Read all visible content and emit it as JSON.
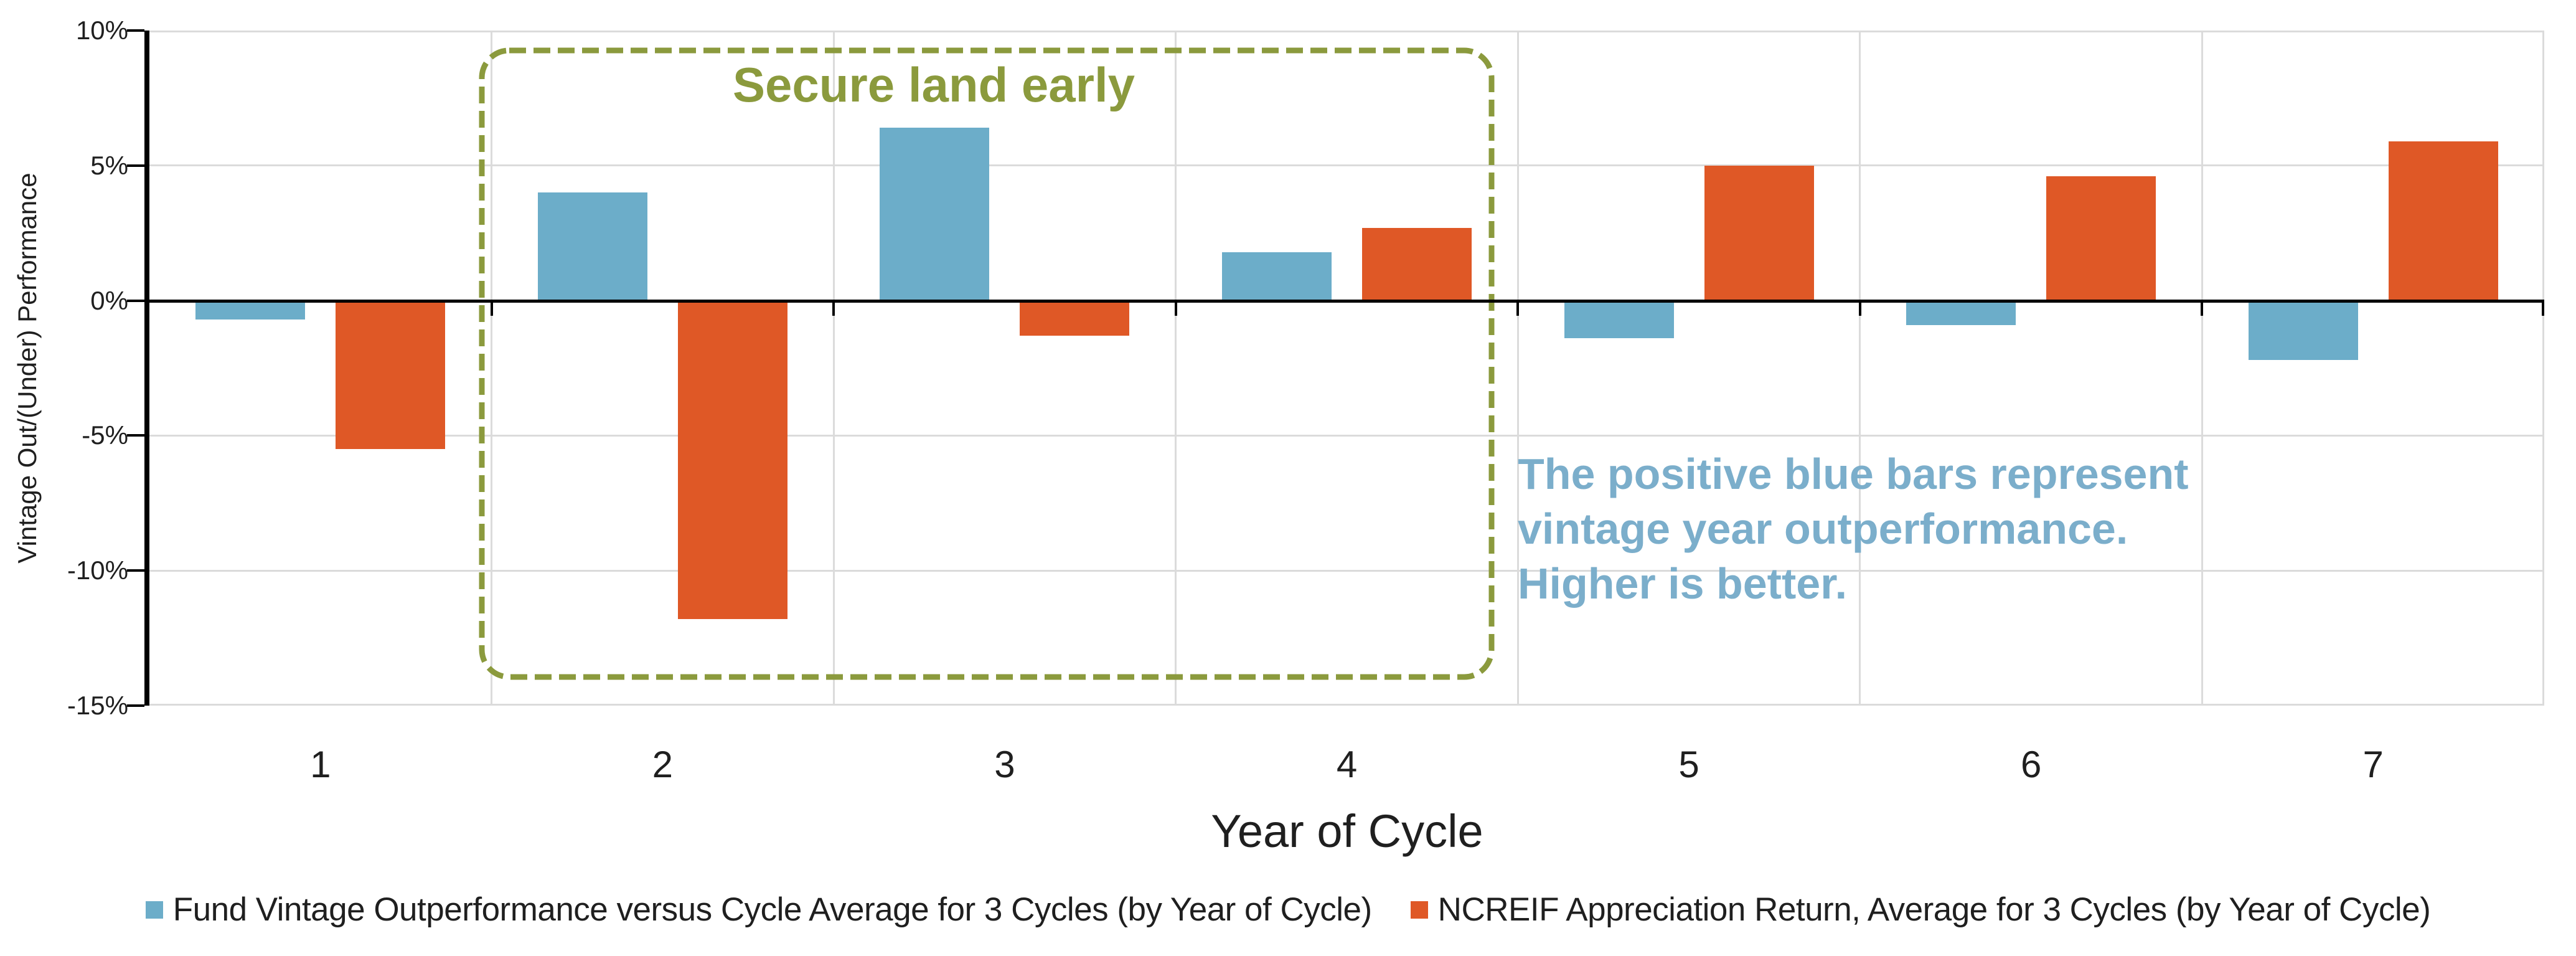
{
  "chart_data": {
    "type": "bar",
    "categories": [
      "1",
      "2",
      "3",
      "4",
      "5",
      "6",
      "7"
    ],
    "series": [
      {
        "key": "fund-vintage",
        "name": "Fund Vintage Outperformance versus Cycle Average for 3 Cycles (by Year of Cycle)",
        "color": "#6CADC9",
        "values": [
          -0.7,
          4.0,
          6.4,
          1.8,
          -1.4,
          -0.9,
          -2.2
        ]
      },
      {
        "key": "ncreif",
        "name": "NCREIF Appreciation Return, Average for 3 Cycles (by Year of Cycle)",
        "color": "#DF5826",
        "values": [
          -5.5,
          -11.8,
          -1.3,
          2.7,
          5.0,
          4.6,
          5.9
        ]
      }
    ],
    "xlabel": "Year of Cycle",
    "ylabel": "Vintage Out/(Under) Performance",
    "ylim": [
      -15,
      10
    ],
    "yticks": [
      {
        "value": 10,
        "label": "10%"
      },
      {
        "value": 5,
        "label": "5%"
      },
      {
        "value": 0,
        "label": "0%"
      },
      {
        "value": -5,
        "label": "-5%"
      },
      {
        "value": -10,
        "label": "-10%"
      },
      {
        "value": -15,
        "label": "-15%"
      }
    ],
    "grid": true,
    "legend_position": "bottom"
  },
  "annotations": {
    "secure_land": {
      "label": "Secure land early",
      "color": "#8B9A3D"
    },
    "blue_note": {
      "lines": [
        "The positive blue bars represent",
        "vintage year outperformance.",
        "Higher is better."
      ],
      "color": "#7BAECB"
    }
  },
  "colors": {
    "grid": "#DBDBDB",
    "axis": "#000000",
    "text": "#1F1F1F"
  }
}
